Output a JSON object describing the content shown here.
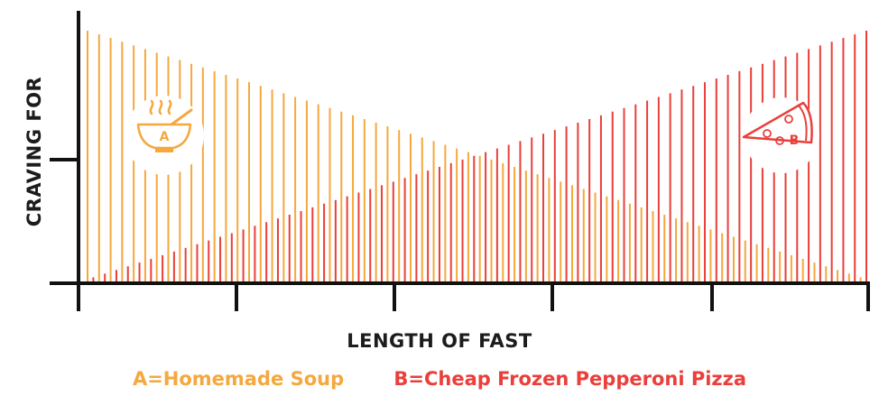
{
  "chart_data": {
    "type": "bar",
    "xlabel": "LENGTH OF FAST",
    "ylabel": "CRAVING FOR",
    "ylim": [
      0,
      100
    ],
    "grid": false,
    "series": [
      {
        "key": "A",
        "name": "A=Homemade Soup",
        "color": "#f5a83d",
        "start": 100,
        "end": 2
      },
      {
        "key": "B",
        "name": "B=Cheap Frozen Pepperoni Pizza",
        "color": "#ea3f3a",
        "start": 2,
        "end": 100
      }
    ],
    "icons": [
      {
        "name": "soup-bowl-icon",
        "label": "A",
        "color": "#f5a83d"
      },
      {
        "name": "pizza-slice-icon",
        "label": "B",
        "color": "#ea3f3a"
      }
    ]
  }
}
